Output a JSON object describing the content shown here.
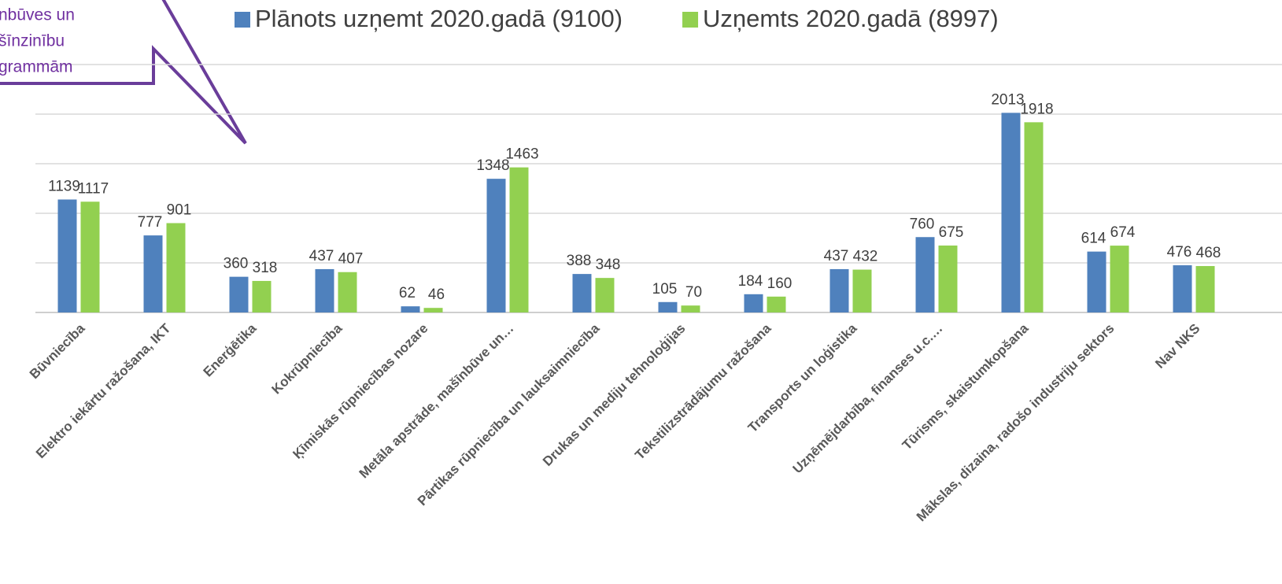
{
  "chart_data": {
    "type": "bar",
    "annotation": [
      "nbūves un",
      "šīnzinību",
      "grammām"
    ],
    "categories": [
      "Būvniecība",
      "Elektro iekārtu ražošana, IKT",
      "Enerģētika",
      "Kokrūpniecība",
      "Ķīmiskās rūpniecības nozare",
      "Metāla apstrāde, mašīnbūve un…",
      "Pārtikas rūpniecība un lauksaimniecība",
      "Drukas un mediju tehnoloģijas",
      "Tekstilizstrādājumu ražošana",
      "Transports un loģistika",
      "Uzņēmējdarbība, finanses u.c.…",
      "Tūrisms, skaistumkopšana",
      "Mākslas, dizaina, radošo industriju sektors",
      "Nav NKS"
    ],
    "series": [
      {
        "name": "Plānots uzņemt 2020.gadā (9100)",
        "color": "#4f81bd",
        "values": [
          1139,
          777,
          360,
          437,
          62,
          1348,
          388,
          105,
          184,
          437,
          760,
          2013,
          614,
          476
        ]
      },
      {
        "name": "Uzņemts 2020.gadā (8997)",
        "color": "#92d050",
        "values": [
          1117,
          901,
          318,
          407,
          46,
          1463,
          348,
          70,
          160,
          432,
          675,
          1918,
          674,
          468
        ]
      }
    ],
    "ylim": [
      0,
      2500
    ],
    "yticks": [
      0,
      500,
      1000,
      1500,
      2000,
      2500
    ],
    "grid": true
  }
}
